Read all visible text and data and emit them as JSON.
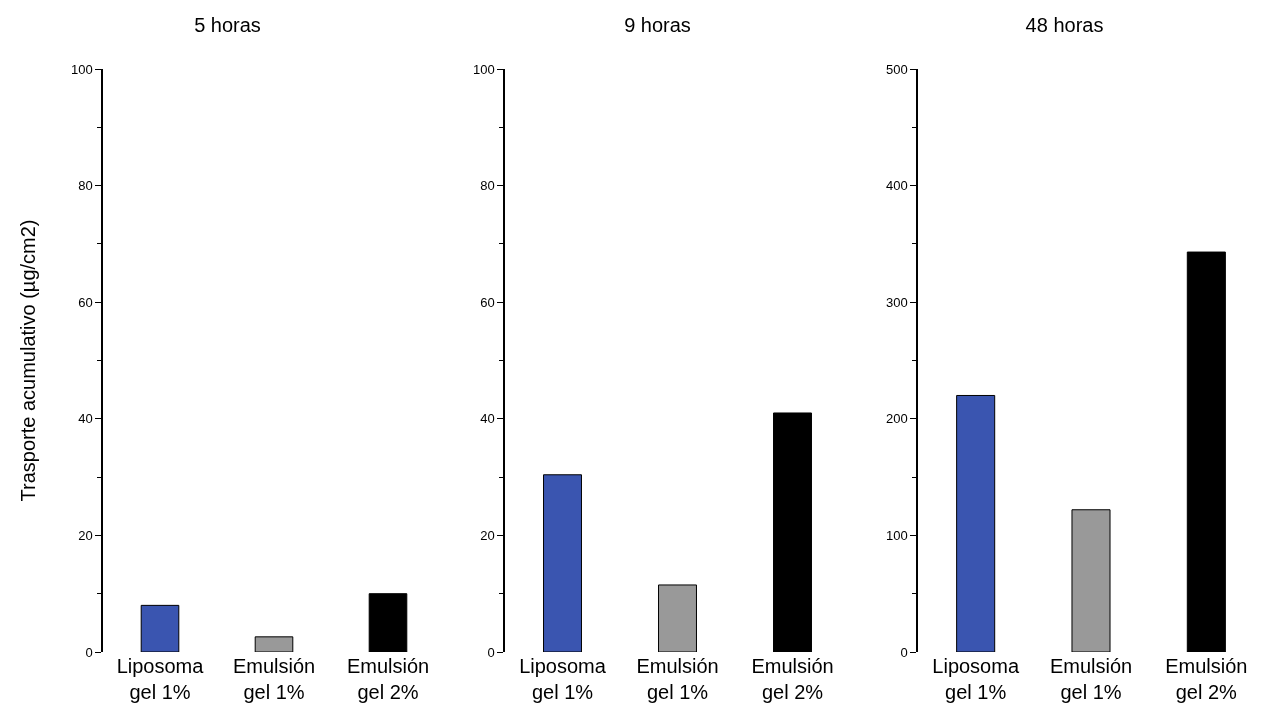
{
  "chart_data": [
    {
      "type": "bar",
      "title": "5 horas",
      "ylabel": "Trasporte acumulativo (µg/cm2)",
      "categories": [
        "Liposoma\ngel 1%",
        "Emulsión\ngel 1%",
        "Emulsión\ngel 2%"
      ],
      "values": [
        8,
        2.6,
        10
      ],
      "colors": [
        "#3a55b0",
        "#999999",
        "#000000"
      ],
      "ylim": [
        0,
        100
      ],
      "yticks": [
        0,
        20,
        40,
        60,
        80,
        100
      ],
      "grid": false
    },
    {
      "type": "bar",
      "title": "9 horas",
      "categories": [
        "Liposoma\ngel 1%",
        "Emulsión\ngel 1%",
        "Emulsión\ngel 2%"
      ],
      "values": [
        30.4,
        11.5,
        41
      ],
      "colors": [
        "#3a55b0",
        "#999999",
        "#000000"
      ],
      "ylim": [
        0,
        100
      ],
      "yticks": [
        0,
        20,
        40,
        60,
        80,
        100
      ],
      "grid": false
    },
    {
      "type": "bar",
      "title": "48 horas",
      "categories": [
        "Liposoma\ngel 1%",
        "Emulsión\ngel 1%",
        "Emulsión\ngel 2%"
      ],
      "values": [
        220,
        122,
        343
      ],
      "colors": [
        "#3a55b0",
        "#999999",
        "#000000"
      ],
      "ylim": [
        0,
        500
      ],
      "yticks": [
        0,
        100,
        200,
        300,
        400,
        500
      ],
      "grid": false
    }
  ]
}
